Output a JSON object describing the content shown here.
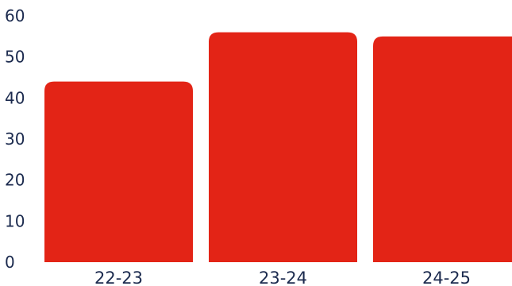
{
  "chart_data": {
    "type": "bar",
    "title": "",
    "xlabel": "",
    "ylabel": "",
    "categories": [
      "22-23",
      "23-24",
      "24-25"
    ],
    "values": [
      44,
      56,
      55
    ],
    "ylim": [
      0,
      60
    ],
    "yticks": [
      0,
      10,
      20,
      30,
      40,
      50,
      60
    ],
    "grid": false,
    "legend": "none",
    "bar_color": "#e32416",
    "text_color": "#1b2a4e"
  }
}
